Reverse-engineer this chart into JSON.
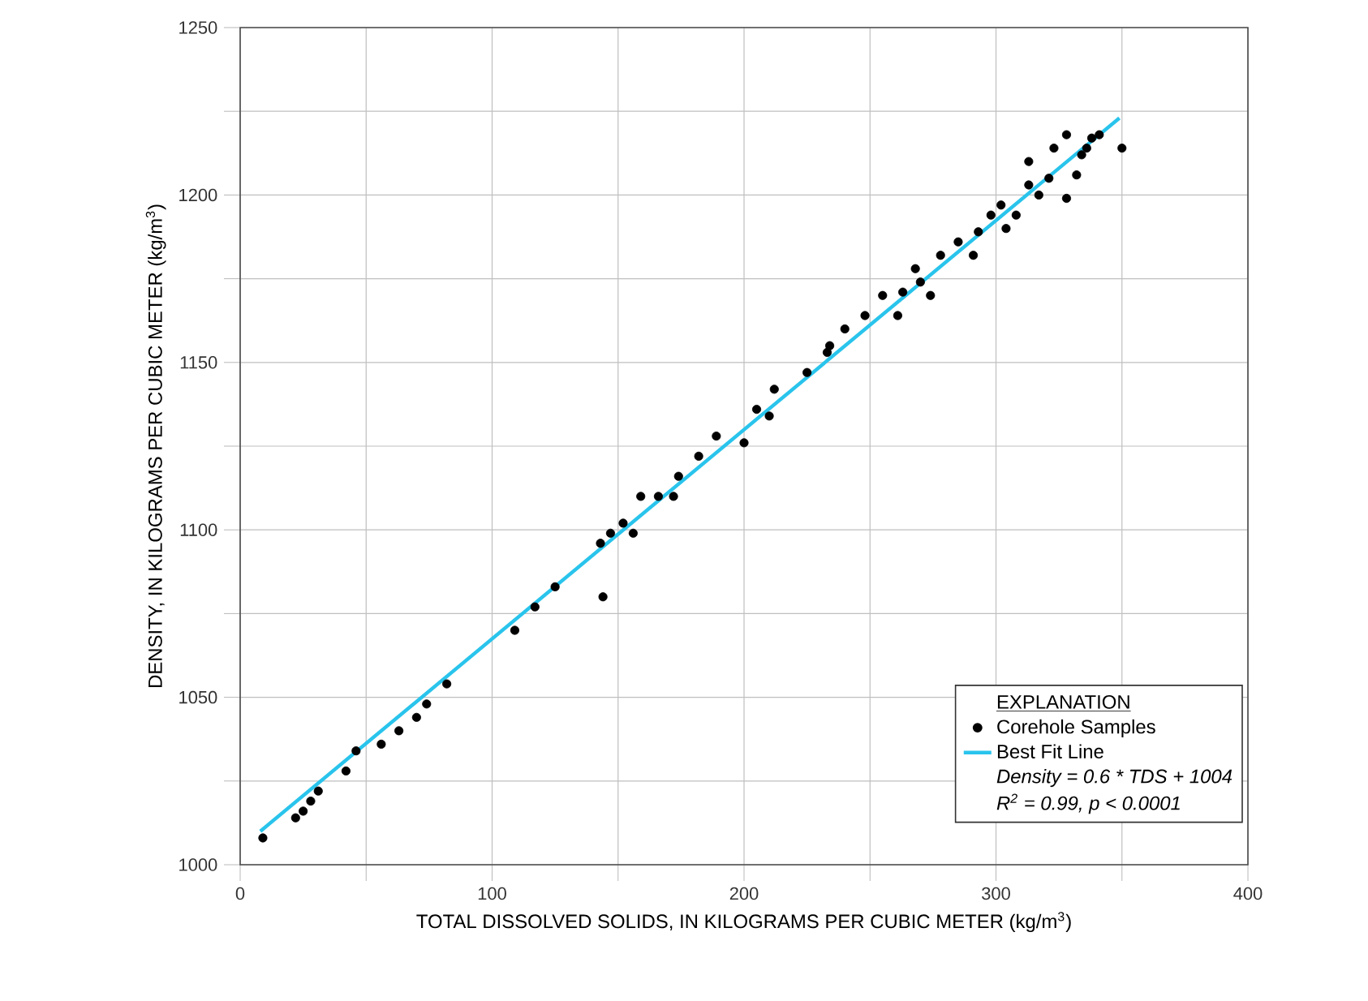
{
  "chart_data": {
    "type": "scatter",
    "xlabel": "TOTAL DISSOLVED SOLIDS, IN KILOGRAMS PER CUBIC METER (kg/m$^{3}$)",
    "ylabel": "DENSITY, IN KILOGRAMS PER CUBIC METER (kg/m$^{3}$)",
    "legend_title": "EXPLANATION",
    "annotations": [
      "Density = 0.6 * TDS + 1004",
      "R$^{2}$ =  0.99,  p < 0.0001"
    ],
    "xlim": [
      0,
      400
    ],
    "ylim": [
      1000,
      1250
    ],
    "xticks": [
      0,
      {
        "value": 50,
        "label": null
      },
      100,
      {
        "value": 150,
        "label": null
      },
      200,
      {
        "value": 250,
        "label": null
      },
      300,
      {
        "value": 350,
        "label": null
      },
      400
    ],
    "yticks": [
      1000,
      {
        "value": 1025,
        "label": null
      },
      1050,
      {
        "value": 1075,
        "label": null
      },
      1100,
      {
        "value": 1125,
        "label": null
      },
      1150,
      {
        "value": 1175,
        "label": null
      },
      1200,
      {
        "value": 1225,
        "label": null
      },
      1250
    ],
    "grid": true,
    "legend": "bottom right",
    "series": [
      {
        "name": "Corehole Samples",
        "marker": "circle",
        "color": "#000000",
        "x": [
          9,
          22,
          25,
          28,
          31,
          42,
          46,
          56,
          63,
          70,
          74,
          82,
          109,
          117,
          125,
          144,
          143,
          147,
          152,
          156,
          159,
          166,
          172,
          174,
          182,
          189,
          200,
          205,
          212,
          210,
          225,
          233,
          234,
          248,
          261,
          263,
          268,
          274,
          285,
          291,
          302,
          308,
          313,
          313,
          323,
          328,
          334,
          328,
          338,
          341,
          350,
          321,
          317,
          304,
          298,
          293,
          278,
          270,
          255,
          240,
          332,
          336
        ],
        "values": [
          1008,
          1014,
          1016,
          1019,
          1022,
          1028,
          1034,
          1036,
          1040,
          1044,
          1048,
          1054,
          1070,
          1077,
          1083,
          1080,
          1096,
          1099,
          1102,
          1099,
          1110,
          1110,
          1110,
          1116,
          1122,
          1128,
          1126,
          1136,
          1142,
          1134,
          1147,
          1153,
          1155,
          1164,
          1164,
          1171,
          1178,
          1170,
          1186,
          1182,
          1197,
          1194,
          1203,
          1210,
          1214,
          1218,
          1212,
          1199,
          1217,
          1218,
          1214,
          1205,
          1200,
          1190,
          1194,
          1189,
          1182,
          1174,
          1170,
          1160,
          1206,
          1214
        ]
      },
      {
        "name": "Best Fit Line",
        "type": "line",
        "line_style": "solid",
        "color": "#29c4ec",
        "x": [
          8,
          349
        ],
        "values": [
          1010,
          1223
        ]
      }
    ]
  }
}
